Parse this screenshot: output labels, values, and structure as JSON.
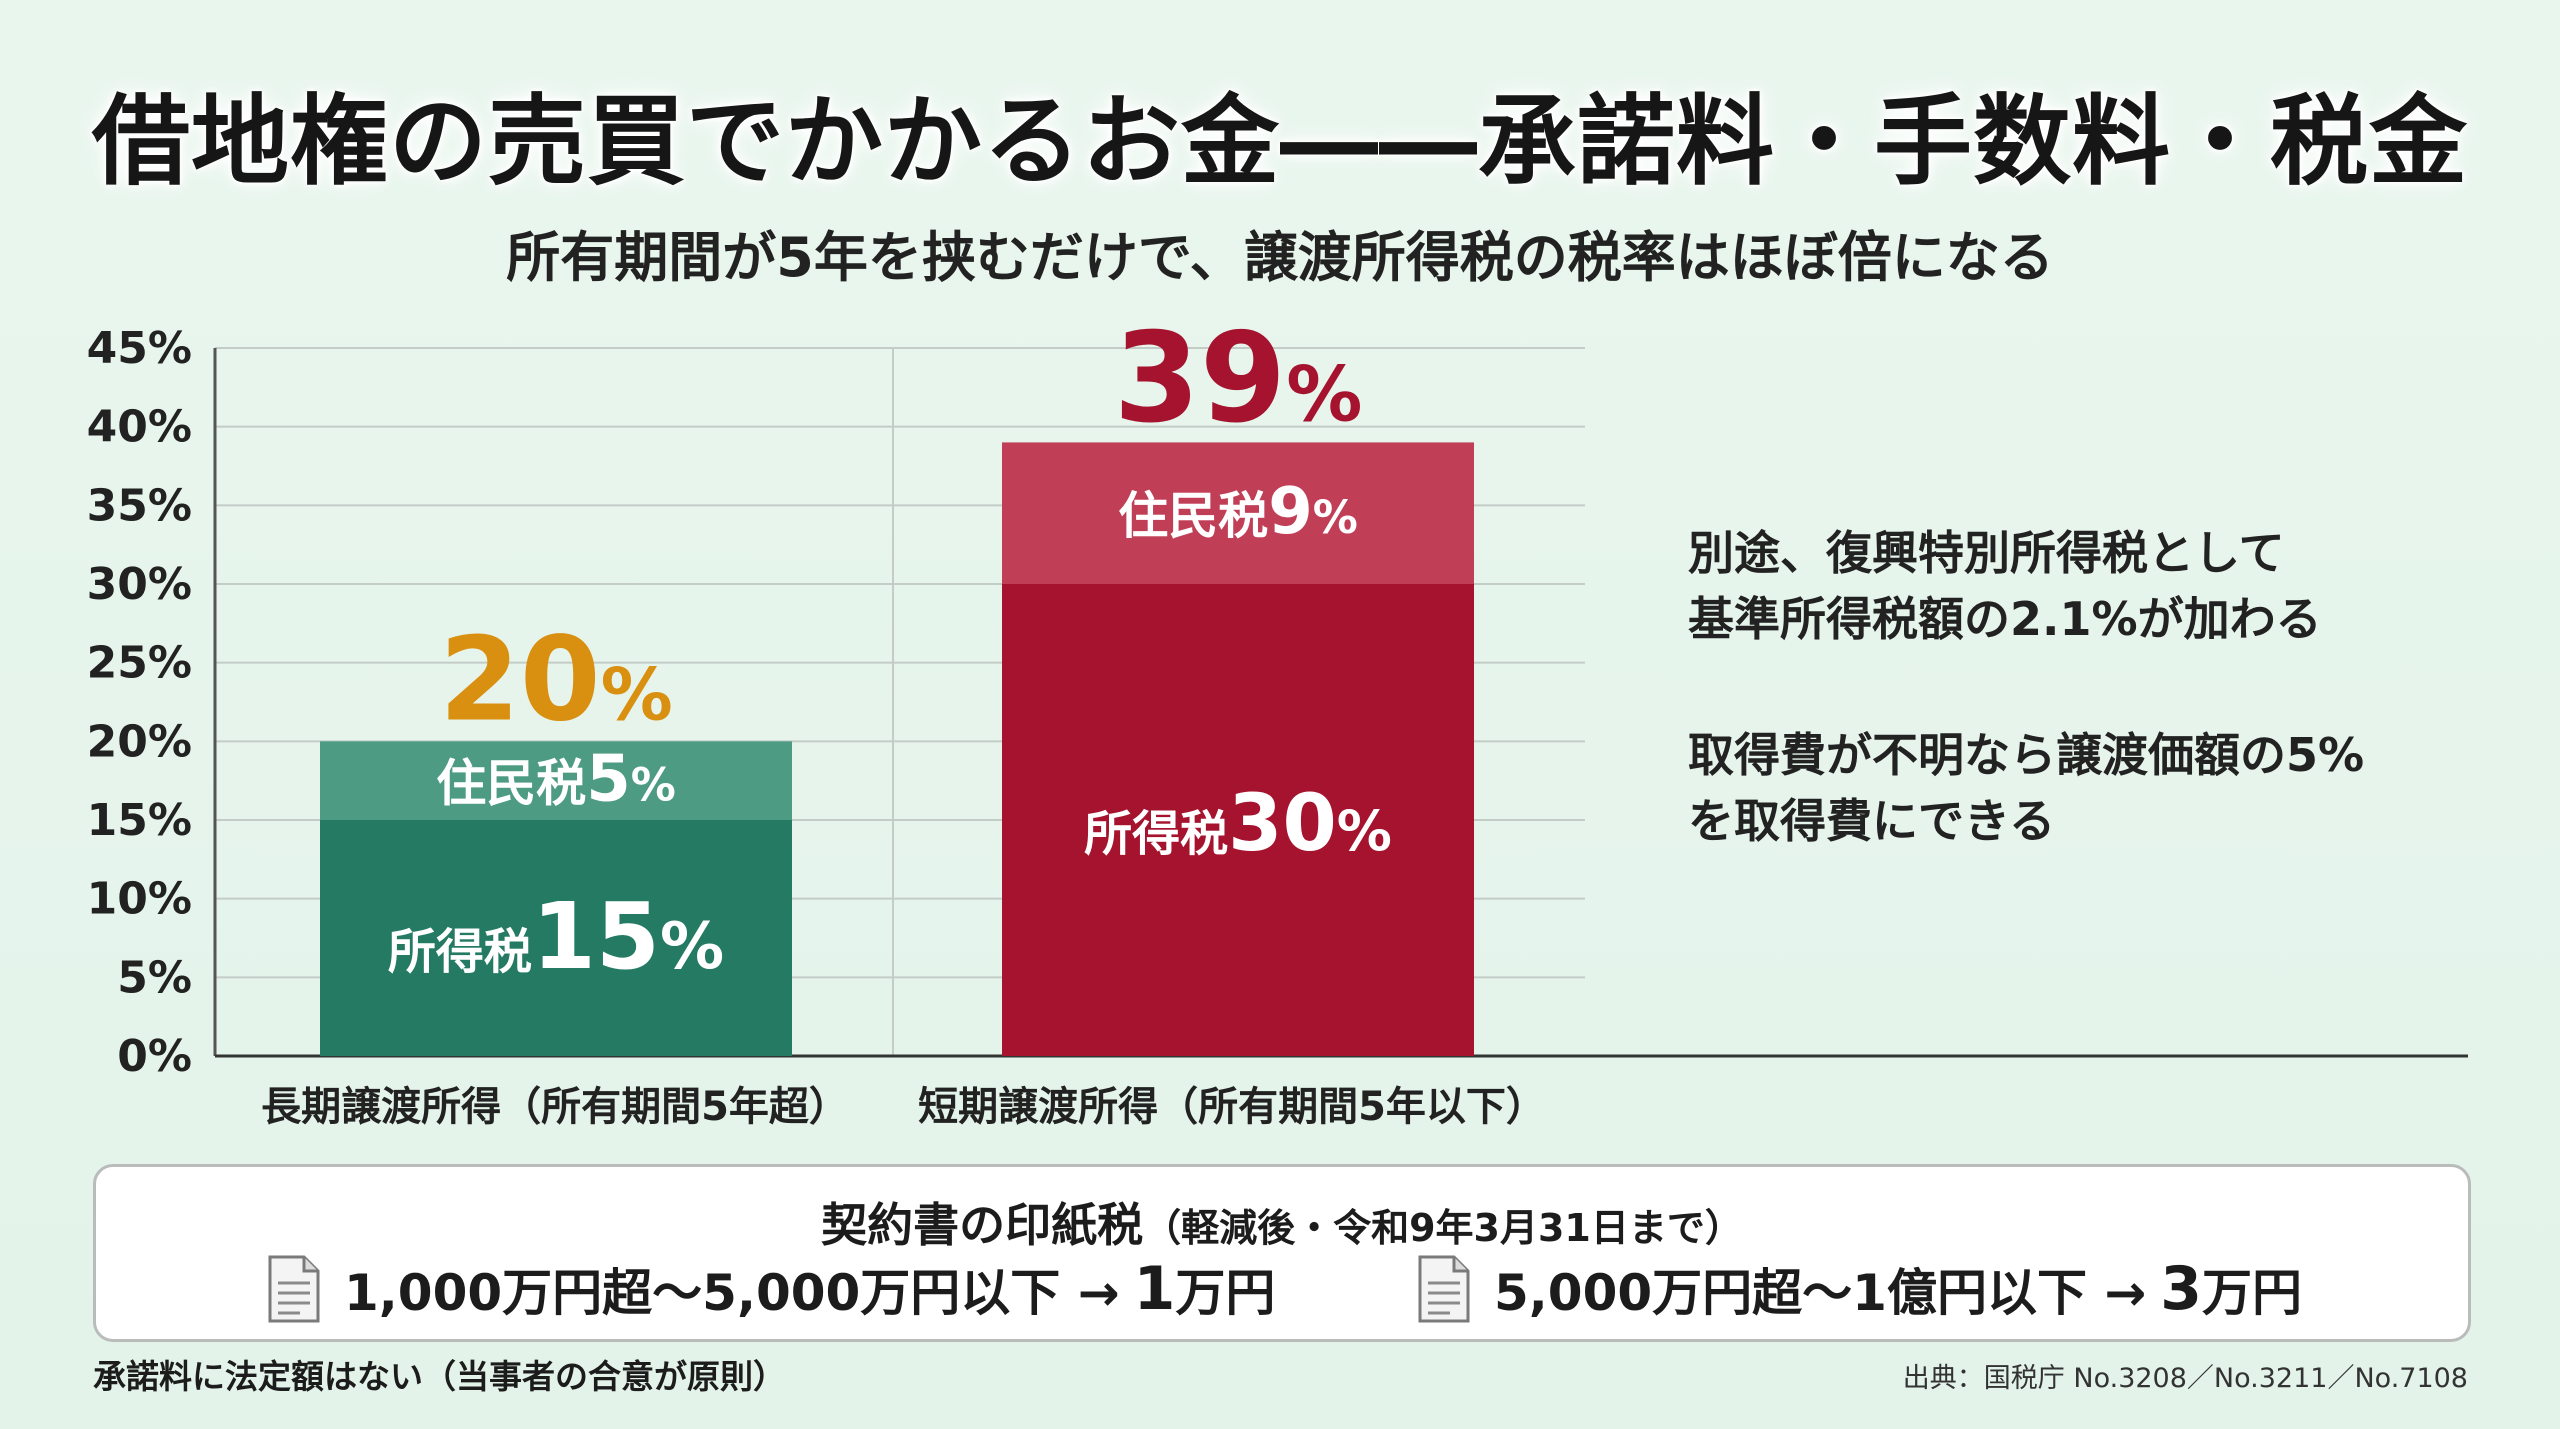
{
  "title": "借地権の売買でかかるお金――承諾料・手数料・税金",
  "subtitle": "所有期間が5年を挟むだけで、譲渡所得税の税率はほぼ倍になる",
  "chart_data": {
    "type": "bar",
    "stacked": true,
    "ylim": [
      0,
      45
    ],
    "yticks": [
      "0%",
      "5%",
      "10%",
      "15%",
      "20%",
      "25%",
      "30%",
      "35%",
      "40%",
      "45%"
    ],
    "grid": true,
    "categories": [
      "長期譲渡所得（所有期間5年超）",
      "短期譲渡所得（所有期間5年以下）"
    ],
    "series": [
      {
        "name": "所得税",
        "values": [
          15,
          30
        ],
        "labels": [
          "15%",
          "30%"
        ]
      },
      {
        "name": "住民税",
        "values": [
          5,
          9
        ],
        "labels": [
          "5%",
          "9%"
        ]
      }
    ],
    "totals": [
      20,
      39
    ],
    "total_labels": [
      "20",
      "39"
    ],
    "percent_sign": "%",
    "colors": {
      "long_income": "#247a63",
      "long_resident": "#4d9b82",
      "short_income": "#a5132f",
      "short_resident": "#c03f56",
      "long_total": "#d98f10",
      "short_total": "#a5132f"
    }
  },
  "notes": {
    "surtax_line1": "別途、復興特別所得税として",
    "surtax_line2": "基準所得税額の2.1%が加わる",
    "acq_line1": "取得費が不明なら譲渡価額の5%",
    "acq_line2": "を取得費にできる"
  },
  "stamp_tax": {
    "title": "契約書の印紙税",
    "subtitle": "（軽減後・令和9年3月31日まで）",
    "item1_range": "1,000万円超〜5,000万円以下 →",
    "item1_amount_num": "1",
    "item1_amount_unit": "万円",
    "item2_range": "5,000万円超〜1億円以下 →",
    "item2_amount_num": "3",
    "item2_amount_unit": "万円",
    "icon": "document-icon"
  },
  "footer": {
    "left": "承諾料に法定額はない（当事者の合意が原則）",
    "right": "出典：国税庁 No.3208／No.3211／No.7108"
  }
}
